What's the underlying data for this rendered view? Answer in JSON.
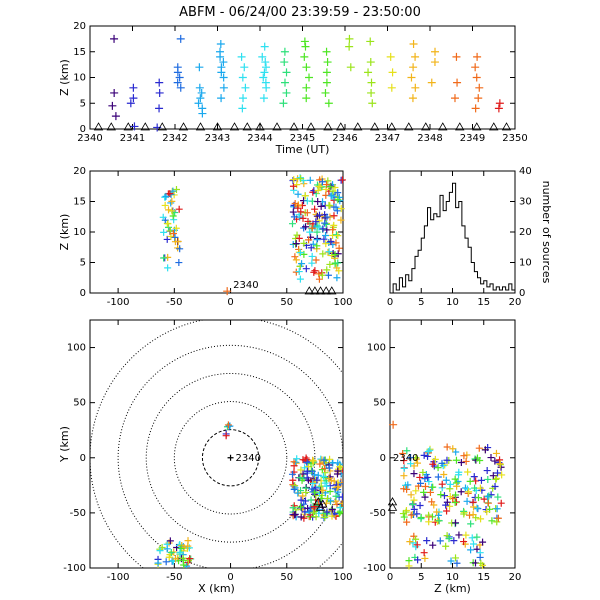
{
  "chart_data": [
    {
      "type": "scatter",
      "panel": "time-height",
      "title": "ABFM - 06/24/00 23:39:59 - 23:50:00",
      "xlabel": "Time (UT)",
      "ylabel": "Z (km)",
      "xlim": [
        2340,
        2350
      ],
      "ylim": [
        0,
        20
      ],
      "xticks": [
        2340,
        2341,
        2342,
        2343,
        2344,
        2345,
        2346,
        2347,
        2348,
        2349,
        2350
      ],
      "yticks": [
        0,
        5,
        10,
        15,
        20
      ],
      "color_by": "time",
      "colors": [
        "#3a0078",
        "#2a2ad0",
        "#1e6be0",
        "#19a8ee",
        "#2ee0f0",
        "#2de07a",
        "#4ee623",
        "#9be41a",
        "#e6e01a",
        "#f2b41a",
        "#f06a1a",
        "#e01a1a"
      ],
      "groups": [
        {
          "t": 2340.55,
          "z": [
            7,
            4.5,
            17.5,
            2.5
          ]
        },
        {
          "t": 2341.0,
          "z": [
            6,
            8,
            5,
            0.5
          ]
        },
        {
          "t": 2341.6,
          "z": [
            4,
            7,
            9,
            0.3
          ]
        },
        {
          "t": 2342.1,
          "z": [
            8,
            9,
            10,
            11,
            12,
            17.5
          ]
        },
        {
          "t": 2342.6,
          "z": [
            3,
            4,
            5,
            6,
            7,
            8,
            12
          ]
        },
        {
          "t": 2343.1,
          "z": [
            6,
            8,
            10,
            11,
            12,
            13,
            14,
            15,
            16.5
          ]
        },
        {
          "t": 2343.6,
          "z": [
            4,
            6,
            8,
            10,
            12,
            14
          ]
        },
        {
          "t": 2344.1,
          "z": [
            6,
            8,
            9,
            10,
            11,
            12,
            13,
            14,
            16
          ]
        },
        {
          "t": 2344.6,
          "z": [
            5,
            7,
            9,
            11,
            13,
            15
          ]
        },
        {
          "t": 2345.1,
          "z": [
            6,
            8,
            10,
            12,
            14,
            16,
            17
          ]
        },
        {
          "t": 2345.6,
          "z": [
            5,
            7,
            9,
            11,
            13,
            15
          ]
        },
        {
          "t": 2346.1,
          "z": [
            12,
            16,
            17.5
          ]
        },
        {
          "t": 2346.6,
          "z": [
            5,
            7,
            9,
            11,
            13,
            17
          ]
        },
        {
          "t": 2347.1,
          "z": [
            8,
            11,
            14
          ]
        },
        {
          "t": 2347.6,
          "z": [
            6,
            8,
            10,
            12,
            14,
            16.5
          ]
        },
        {
          "t": 2348.1,
          "z": [
            9,
            13,
            15
          ]
        },
        {
          "t": 2348.6,
          "z": [
            6,
            9,
            14
          ]
        },
        {
          "t": 2349.1,
          "z": [
            4,
            6,
            8,
            10,
            12,
            14
          ]
        },
        {
          "t": 2349.6,
          "z": [
            4,
            5
          ]
        }
      ],
      "sensor_markers_at_z": 0,
      "sensor_marker_times": [
        2340.2,
        2340.5,
        2340.9,
        2341.3,
        2341.7,
        2342.2,
        2342.6,
        2343.0,
        2343.4,
        2343.7,
        2344.0,
        2344.4,
        2344.8,
        2345.2,
        2345.6,
        2345.9,
        2346.3,
        2346.7,
        2347.1,
        2347.5,
        2347.9,
        2348.3,
        2348.7,
        2349.1,
        2349.5,
        2349.8
      ]
    },
    {
      "type": "scatter",
      "panel": "x-z",
      "xlabel": "",
      "ylabel": "Z (km)",
      "xlim": [
        -125,
        100
      ],
      "ylim": [
        0,
        20
      ],
      "xticks": [
        -100,
        -50,
        0,
        50,
        100
      ],
      "yticks": [
        0,
        5,
        10,
        15,
        20
      ],
      "station_label": "2340",
      "clusters": [
        {
          "name": "west",
          "x": [
            -60,
            -45
          ],
          "z": [
            3,
            17
          ]
        },
        {
          "name": "east",
          "x": [
            55,
            100
          ],
          "z": [
            2,
            19
          ]
        }
      ],
      "sensor_x": [
        70,
        75,
        80,
        85,
        90
      ]
    },
    {
      "type": "bar",
      "panel": "histogram",
      "xlabel": "",
      "ylabel": "number of sources",
      "xlim": [
        0,
        20
      ],
      "ylim": [
        0,
        40
      ],
      "xticks": [
        0,
        5,
        10,
        15,
        20
      ],
      "yticks": [
        0,
        10,
        20,
        30,
        40
      ],
      "bin_width": 0.5,
      "values": [
        0,
        3,
        1,
        5,
        2,
        6,
        4,
        8,
        12,
        14,
        18,
        22,
        28,
        24,
        26,
        25,
        32,
        27,
        30,
        33,
        36,
        28,
        30,
        22,
        18,
        15,
        10,
        7,
        5,
        3,
        4,
        2,
        3,
        1,
        2,
        1,
        2,
        1,
        3,
        1
      ]
    },
    {
      "type": "scatter",
      "panel": "x-y",
      "xlabel": "X (km)",
      "ylabel": "Y (km)",
      "xlim": [
        -125,
        100
      ],
      "ylim": [
        -100,
        125
      ],
      "xticks": [
        -100,
        -50,
        0,
        50,
        100
      ],
      "yticks": [
        -100,
        -50,
        0,
        50,
        100
      ],
      "range_rings_km": [
        25,
        50,
        75,
        100,
        125
      ],
      "station_label": "2340",
      "clusters": [
        {
          "name": "east",
          "x": [
            55,
            100
          ],
          "y": [
            -55,
            0
          ]
        },
        {
          "name": "southwest",
          "x": [
            -65,
            -35
          ],
          "y": [
            -100,
            -75
          ]
        },
        {
          "name": "north",
          "x": [
            -5,
            5
          ],
          "y": [
            20,
            30
          ]
        }
      ],
      "sensor_xy": [
        [
          78,
          -40
        ],
        [
          80,
          -45
        ],
        [
          82,
          -42
        ]
      ]
    },
    {
      "type": "scatter",
      "panel": "z-y",
      "xlabel": "Z (km)",
      "ylabel": "",
      "xlim": [
        0,
        20
      ],
      "ylim": [
        -100,
        125
      ],
      "xticks": [
        0,
        5,
        10,
        15,
        20
      ],
      "yticks": [
        -100,
        -50,
        0,
        50,
        100
      ],
      "station_label": "2340",
      "clusters": [
        {
          "name": "main",
          "z": [
            2,
            18
          ],
          "y": [
            -60,
            10
          ]
        },
        {
          "name": "south",
          "z": [
            3,
            15
          ],
          "y": [
            -100,
            -70
          ]
        }
      ],
      "sensor_z": 0.4,
      "sensor_y": [
        -45,
        -40
      ]
    }
  ]
}
